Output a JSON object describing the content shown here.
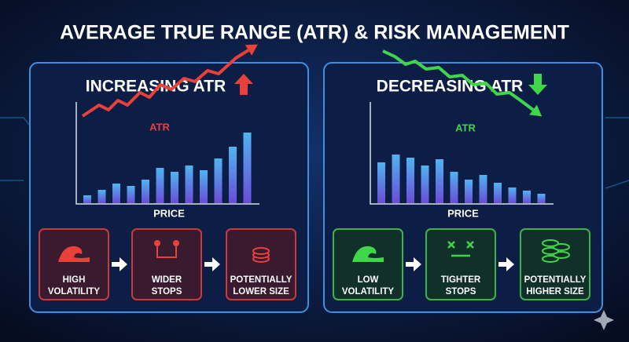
{
  "title": "AVERAGE TRUE RANGE (ATR) & RISK MANAGEMENT",
  "panels": [
    {
      "heading": "INCREASING ATR",
      "line_label": "ATR",
      "axis_label": "PRICE",
      "bars": [
        10,
        17,
        25,
        22,
        30,
        45,
        40,
        48,
        42,
        57,
        72,
        90
      ],
      "steps": [
        {
          "lines": [
            "HIGH",
            "VOLATILITY"
          ]
        },
        {
          "lines": [
            "WIDER",
            "STOPS"
          ]
        },
        {
          "lines": [
            "POTENTIALLY",
            "LOWER SIZE"
          ]
        }
      ]
    },
    {
      "heading": "DECREASING ATR",
      "line_label": "ATR",
      "axis_label": "PRICE",
      "bars": [
        52,
        62,
        58,
        48,
        56,
        40,
        30,
        36,
        26,
        20,
        16,
        12
      ],
      "steps": [
        {
          "lines": [
            "LOW",
            "VOLATILITY"
          ]
        },
        {
          "lines": [
            "TIGHTER",
            "STOPS"
          ]
        },
        {
          "lines": [
            "POTENTIALLY",
            "HIGHER SIZE"
          ]
        }
      ]
    }
  ]
}
